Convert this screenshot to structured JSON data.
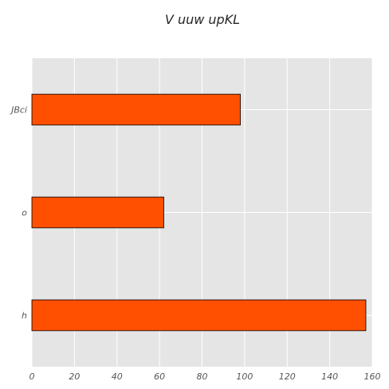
{
  "chart_data": {
    "type": "bar",
    "orientation": "horizontal",
    "title": "V uuw upKL",
    "xlabel": "",
    "ylabel": "",
    "categories": [
      "h",
      "o",
      "JBci"
    ],
    "values": [
      157,
      62,
      98
    ],
    "xlim": [
      0,
      160
    ],
    "xticks": [
      "0",
      "20",
      "40",
      "60",
      "80",
      "100",
      "120",
      "140",
      "160"
    ],
    "grid": true,
    "colors": {
      "bar": "#ff4f00",
      "bar_edge": "#000000",
      "plot_background": "#e5e5e5",
      "grid": "#ffffff"
    }
  }
}
